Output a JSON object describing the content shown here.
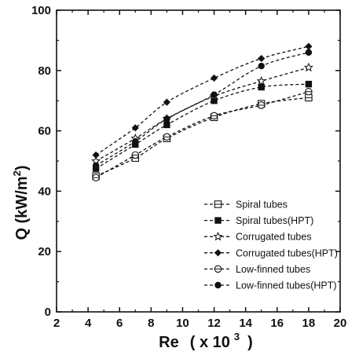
{
  "chart_data": {
    "type": "scatter",
    "x_label": {
      "main": "Re",
      "mult": "( x 10",
      "exp": "3",
      "close": ")"
    },
    "y_label": {
      "main": "Q (kW/m",
      "exp": "2",
      "close": ")"
    },
    "xlim": [
      2,
      20
    ],
    "ylim": [
      0,
      100
    ],
    "x_ticks": [
      2,
      4,
      6,
      8,
      10,
      12,
      14,
      16,
      18,
      20
    ],
    "y_ticks": [
      0,
      20,
      40,
      60,
      80,
      100
    ],
    "grid": false,
    "legend_position": "bottom-right",
    "x": [
      4.5,
      7,
      9,
      12,
      15,
      18
    ],
    "series": [
      {
        "name": "Spiral tubes",
        "marker": "open-square-cross",
        "values": [
          45,
          51,
          57.5,
          64.5,
          69,
          71
        ]
      },
      {
        "name": "Spiral tubes(HPT)",
        "marker": "filled-square",
        "values": [
          47.5,
          55.5,
          62,
          70,
          74.5,
          75.5
        ]
      },
      {
        "name": "Corrugated tubes",
        "marker": "open-star",
        "values": [
          50,
          57.5,
          64,
          71.5,
          76.5,
          81
        ]
      },
      {
        "name": "Corrugated tubes(HPT)",
        "marker": "filled-diamond",
        "values": [
          52,
          61,
          69.5,
          77.5,
          84,
          88
        ]
      },
      {
        "name": "Low-finned tubes",
        "marker": "open-circle-bar",
        "values": [
          44.5,
          52,
          58,
          65,
          68.5,
          73
        ]
      },
      {
        "name": "Low-finned tubes(HPT)",
        "marker": "filled-circle",
        "values": [
          48.5,
          56.5,
          64,
          72,
          81.5,
          86
        ]
      }
    ]
  }
}
